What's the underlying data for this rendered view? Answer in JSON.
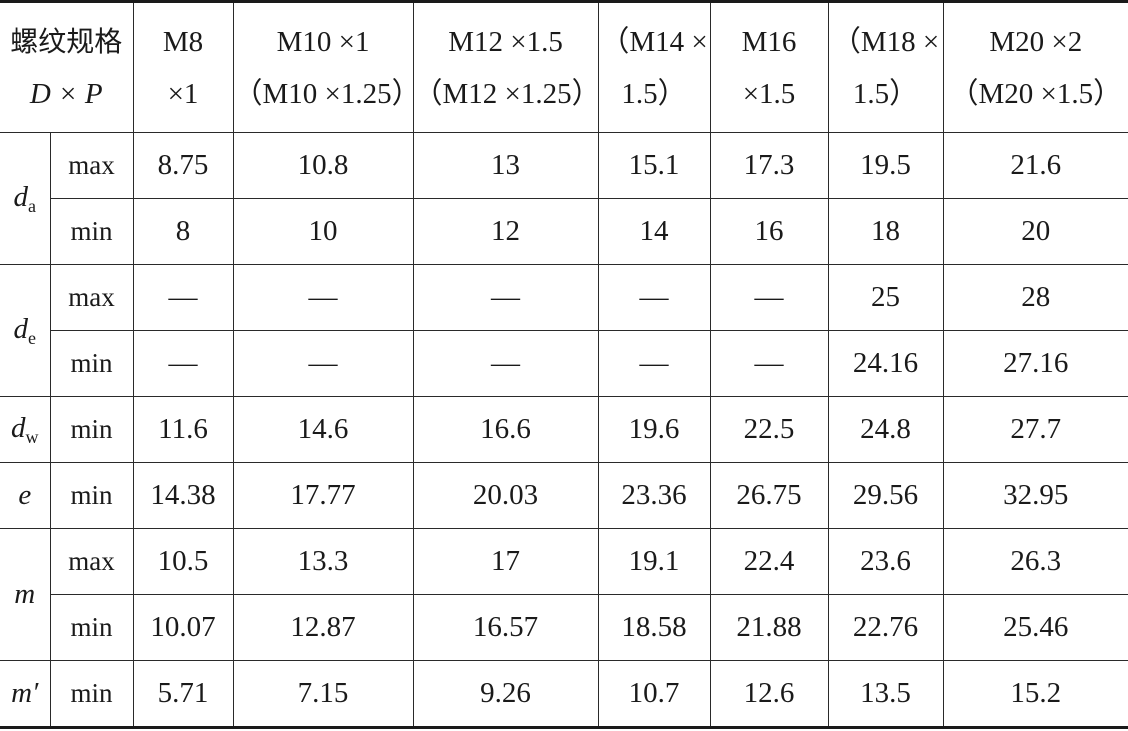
{
  "header": {
    "spec_label": "螺纹规格",
    "spec_symbol": "D × P",
    "columns": [
      [
        "M8",
        "×1"
      ],
      [
        "M10 ×1",
        "（M10 ×1.25）"
      ],
      [
        "M12 ×1.5",
        "（M12 ×1.25）"
      ],
      [
        "（M14 ×",
        "1.5）"
      ],
      [
        "M16",
        "×1.5"
      ],
      [
        "（M18 ×",
        "1.5）"
      ],
      [
        "M20 ×2",
        "（M20 ×1.5）"
      ]
    ]
  },
  "groups": [
    {
      "symbol": "d",
      "subscript": "a",
      "rows": [
        {
          "label": "max",
          "values": [
            "8.75",
            "10.8",
            "13",
            "15.1",
            "17.3",
            "19.5",
            "21.6"
          ]
        },
        {
          "label": "min",
          "values": [
            "8",
            "10",
            "12",
            "14",
            "16",
            "18",
            "20"
          ]
        }
      ]
    },
    {
      "symbol": "d",
      "subscript": "e",
      "rows": [
        {
          "label": "max",
          "values": [
            "—",
            "—",
            "—",
            "—",
            "—",
            "25",
            "28"
          ]
        },
        {
          "label": "min",
          "values": [
            "—",
            "—",
            "—",
            "—",
            "—",
            "24.16",
            "27.16"
          ]
        }
      ]
    },
    {
      "symbol": "d",
      "subscript": "w",
      "rows": [
        {
          "label": "min",
          "values": [
            "11.6",
            "14.6",
            "16.6",
            "19.6",
            "22.5",
            "24.8",
            "27.7"
          ]
        }
      ]
    },
    {
      "symbol": "e",
      "subscript": "",
      "rows": [
        {
          "label": "min",
          "values": [
            "14.38",
            "17.77",
            "20.03",
            "23.36",
            "26.75",
            "29.56",
            "32.95"
          ]
        }
      ]
    },
    {
      "symbol": "m",
      "subscript": "",
      "rows": [
        {
          "label": "max",
          "values": [
            "10.5",
            "13.3",
            "17",
            "19.1",
            "22.4",
            "23.6",
            "26.3"
          ]
        },
        {
          "label": "min",
          "values": [
            "10.07",
            "12.87",
            "16.57",
            "18.58",
            "21.88",
            "22.76",
            "25.46"
          ]
        }
      ]
    },
    {
      "symbol": "m′",
      "subscript": "",
      "rows": [
        {
          "label": "min",
          "values": [
            "5.71",
            "7.15",
            "9.26",
            "10.7",
            "12.6",
            "13.5",
            "15.2"
          ]
        }
      ]
    }
  ]
}
